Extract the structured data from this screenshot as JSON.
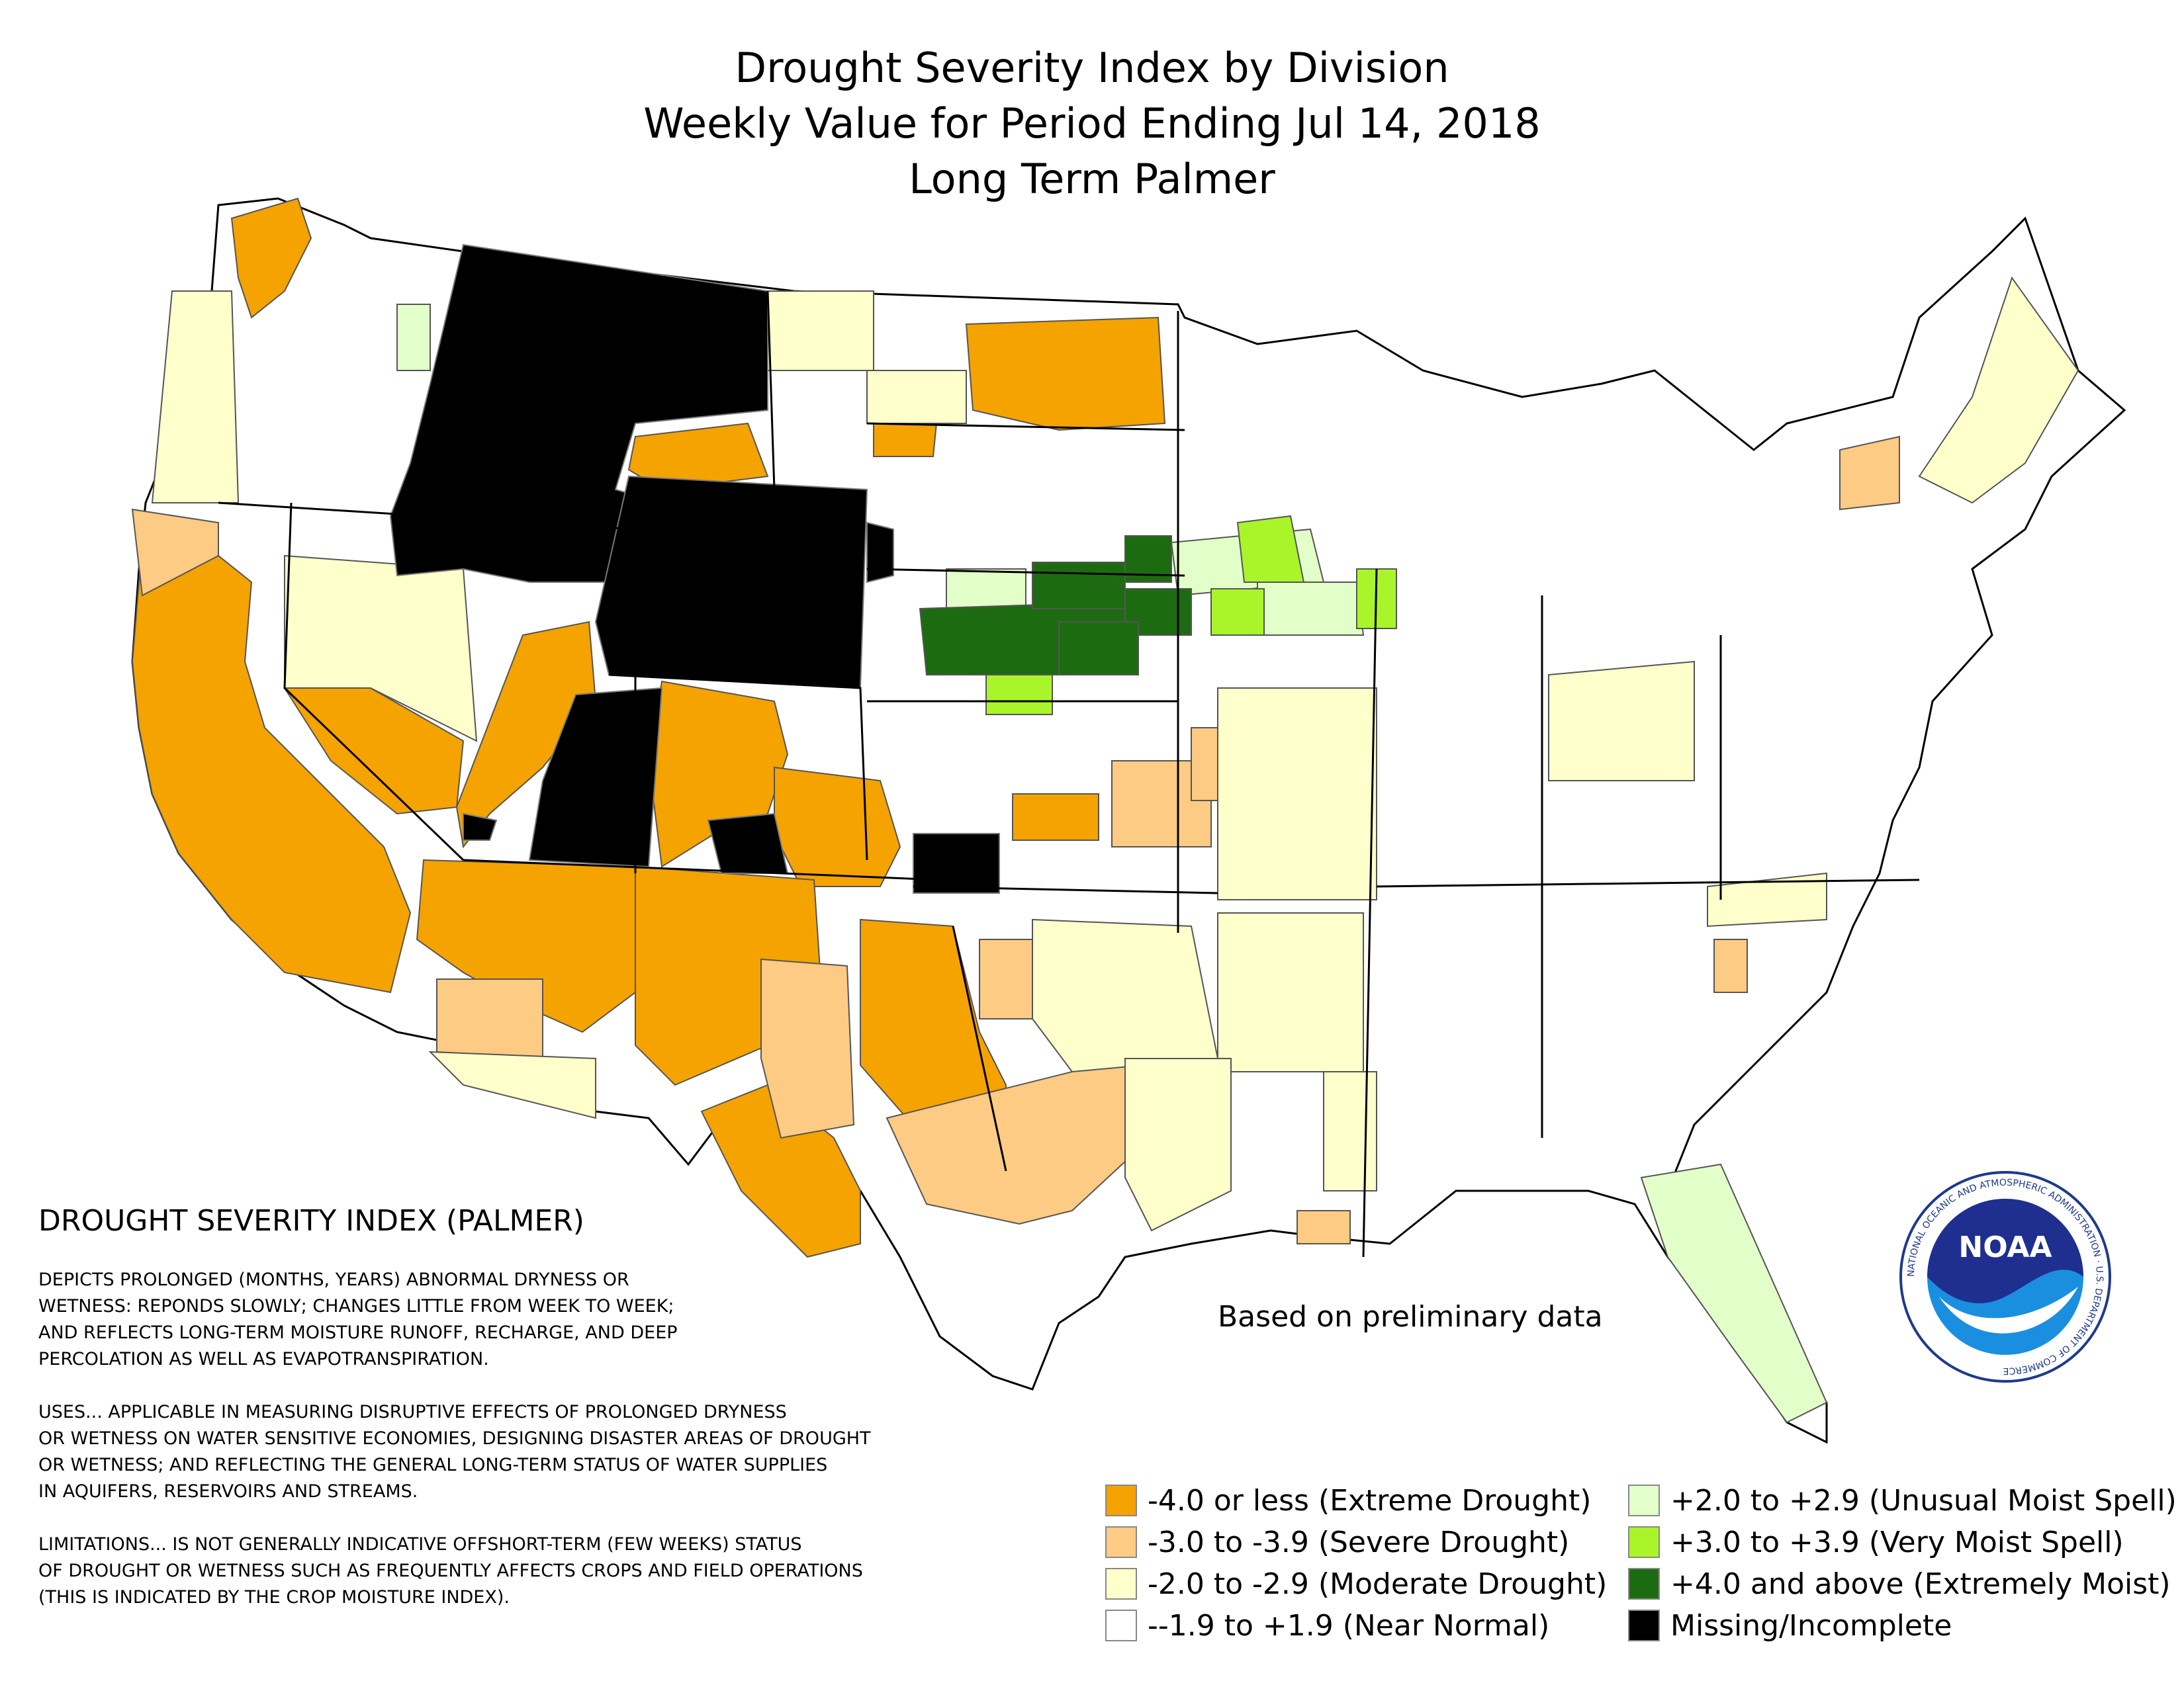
{
  "title": {
    "line1": "Drought Severity Index by Division",
    "line2": "Weekly Value for Period Ending Jul 14, 2018",
    "line3": "Long Term Palmer"
  },
  "description": {
    "heading": "DROUGHT SEVERITY INDEX (PALMER)",
    "para1": "DEPICTS PROLONGED (MONTHS, YEARS) ABNORMAL DRYNESS OR\nWETNESS: REPONDS SLOWLY; CHANGES LITTLE FROM WEEK TO WEEK;\nAND REFLECTS LONG-TERM MOISTURE RUNOFF, RECHARGE, AND DEEP\nPERCOLATION AS WELL AS EVAPOTRANSPIRATION.",
    "para2": "USES... APPLICABLE IN MEASURING DISRUPTIVE EFFECTS OF PROLONGED DRYNESS\nOR WETNESS ON WATER SENSITIVE ECONOMIES, DESIGNING DISASTER AREAS OF DROUGHT\nOR WETNESS; AND REFLECTING THE GENERAL LONG-TERM STATUS OF WATER SUPPLIES\nIN AQUIFERS, RESERVOIRS AND STREAMS.",
    "para3": "LIMITATIONS... IS NOT GENERALLY INDICATIVE OFFSHORT-TERM (FEW WEEKS) STATUS\nOF DROUGHT OR WETNESS SUCH AS FREQUENTLY AFFECTS CROPS AND FIELD OPERATIONS\n(THIS IS INDICATED BY THE CROP MOISTURE INDEX)."
  },
  "note": "Based on preliminary data",
  "legend": [
    {
      "label": "-4.0 or less (Extreme Drought)",
      "color": "#f5a300"
    },
    {
      "label": "-3.0 to -3.9 (Severe Drought)",
      "color": "#fdcb83"
    },
    {
      "label": "-2.0 to -2.9 (Moderate Drought)",
      "color": "#ffffcc"
    },
    {
      "label": "--1.9 to +1.9 (Near Normal)",
      "color": "#ffffff"
    },
    {
      "label": "+2.0 to +2.9 (Unusual Moist Spell)",
      "color": "#e3ffc9"
    },
    {
      "label": "+3.0 to +3.9 (Very Moist Spell)",
      "color": "#a9f52a"
    },
    {
      "label": "+4.0 and above (Extremely Moist)",
      "color": "#1d6b10"
    },
    {
      "label": "Missing/Incomplete",
      "color": "#000000"
    }
  ],
  "logo": {
    "text": "NOAA",
    "ring_text": "NATIONAL OCEANIC AND ATMOSPHERIC ADMINISTRATION · U.S. DEPARTMENT OF COMMERCE"
  }
}
